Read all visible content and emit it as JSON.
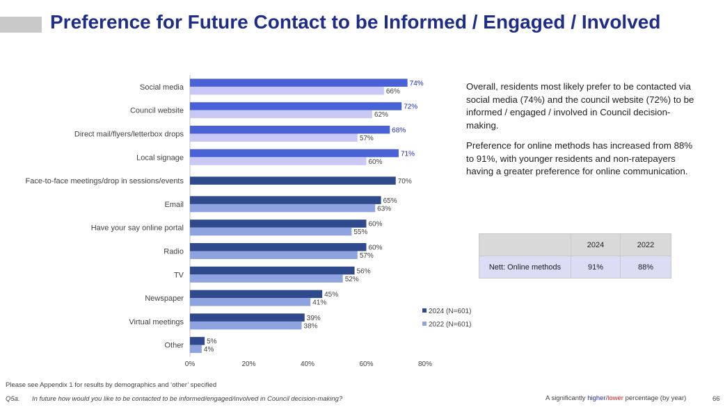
{
  "title": "Preference for Future Contact to be Informed / Engaged / Involved",
  "colors": {
    "series_2024": "#2e4a8c",
    "series_2022": "#8fa3e0",
    "series_2024_alt": "#4a62d8",
    "series_2022_alt": "#c9c8f5",
    "higher": "#1f2db0",
    "lower": "#e02020"
  },
  "chart_data": {
    "type": "bar",
    "orientation": "horizontal",
    "categories": [
      "Social media",
      "Council website",
      "Direct mail/flyers/letterbox drops",
      "Local signage",
      "Face-to-face meetings/drop in sessions/events",
      "Email",
      "Have your say online portal",
      "Radio",
      "TV",
      "Newspaper",
      "Virtual meetings",
      "Other"
    ],
    "series": [
      {
        "name": "2024 (N=601)",
        "values": [
          74,
          72,
          68,
          71,
          70,
          65,
          60,
          60,
          56,
          45,
          39,
          5
        ],
        "labels": [
          "74%",
          "72%",
          "68%",
          "71%",
          "70%",
          "65%",
          "60%",
          "60%",
          "56%",
          "45%",
          "39%",
          "5%"
        ]
      },
      {
        "name": "2022 (N=601)",
        "values": [
          66,
          62,
          57,
          60,
          null,
          63,
          55,
          57,
          52,
          41,
          38,
          4
        ],
        "labels": [
          "66%",
          "62%",
          "57%",
          "60%",
          "",
          "63%",
          "55%",
          "57%",
          "52%",
          "41%",
          "38%",
          "4%"
        ]
      }
    ],
    "significant_higher_2024": [
      0,
      1,
      2,
      3
    ],
    "x_ticks": [
      "0%",
      "20%",
      "40%",
      "60%",
      "80%"
    ],
    "xlim": [
      0,
      80
    ],
    "legend": {
      "position": "right"
    }
  },
  "commentary": {
    "p1": "Overall, residents most likely prefer to be contacted via social media (74%) and the council website (72%) to be informed / engaged / involved in Council decision-making.",
    "p2": "Preference for online methods has increased from 88% to 91%, with younger residents and non-ratepayers having a greater preference for online communication."
  },
  "summary_table": {
    "header": [
      "",
      "2024",
      "2022"
    ],
    "row": [
      "Nett: Online methods",
      "91%",
      "88%"
    ]
  },
  "footnotes": {
    "appendix": "Please see Appendix 1 for results by demographics and ‘other’ specified",
    "question_number": "Q5a.",
    "question_text": "In future how would you like to be contacted to be informed/engaged/involved in Council decision-making?",
    "sig_prefix": "A significantly ",
    "sig_higher": "higher",
    "sig_slash": "/",
    "sig_lower": "lower",
    "sig_suffix": " percentage (by year)",
    "page_number": "66"
  }
}
